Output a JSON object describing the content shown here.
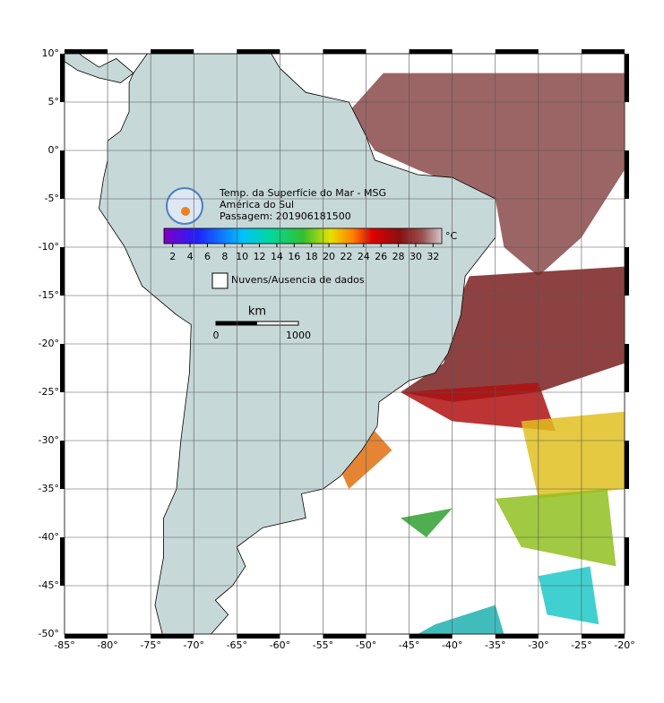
{
  "map": {
    "title_lines": [
      "Temp. da Superfície do Mar - MSG",
      "América do Sul",
      "Passagem: 201906181500"
    ],
    "lon_range": [
      -85,
      -20
    ],
    "lat_range": [
      -50,
      10
    ],
    "lon_ticks": [
      {
        "value": -85,
        "label": "-85°"
      },
      {
        "value": -80,
        "label": "-80°"
      },
      {
        "value": -75,
        "label": "-75°"
      },
      {
        "value": -70,
        "label": "-70°"
      },
      {
        "value": -65,
        "label": "-65°"
      },
      {
        "value": -60,
        "label": "-60°"
      },
      {
        "value": -55,
        "label": "-55°"
      },
      {
        "value": -50,
        "label": "-50°"
      },
      {
        "value": -45,
        "label": "-45°"
      },
      {
        "value": -40,
        "label": "-40°"
      },
      {
        "value": -35,
        "label": "-35°"
      },
      {
        "value": -30,
        "label": "-30°"
      },
      {
        "value": -25,
        "label": "-25°"
      },
      {
        "value": -20,
        "label": "-20°"
      }
    ],
    "lat_ticks": [
      {
        "value": 10,
        "label": "10°"
      },
      {
        "value": 5,
        "label": "5°"
      },
      {
        "value": 0,
        "label": "0°"
      },
      {
        "value": -5,
        "label": "-5°"
      },
      {
        "value": -10,
        "label": "-10°"
      },
      {
        "value": -15,
        "label": "-15°"
      },
      {
        "value": -20,
        "label": "-20°"
      },
      {
        "value": -25,
        "label": "-25°"
      },
      {
        "value": -30,
        "label": "-30°"
      },
      {
        "value": -35,
        "label": "-35°"
      },
      {
        "value": -40,
        "label": "-40°"
      },
      {
        "value": -45,
        "label": "-45°"
      },
      {
        "value": -50,
        "label": "-50°"
      }
    ],
    "colorbar": {
      "range": [
        1,
        33
      ],
      "ticks": [
        2,
        4,
        6,
        8,
        10,
        12,
        14,
        16,
        18,
        20,
        22,
        24,
        26,
        28,
        30,
        32
      ],
      "unit": "°C"
    },
    "legend": "Nuvens/Ausencia de dados",
    "scale": {
      "unit": "km",
      "labels": [
        "0",
        "1000"
      ]
    }
  }
}
